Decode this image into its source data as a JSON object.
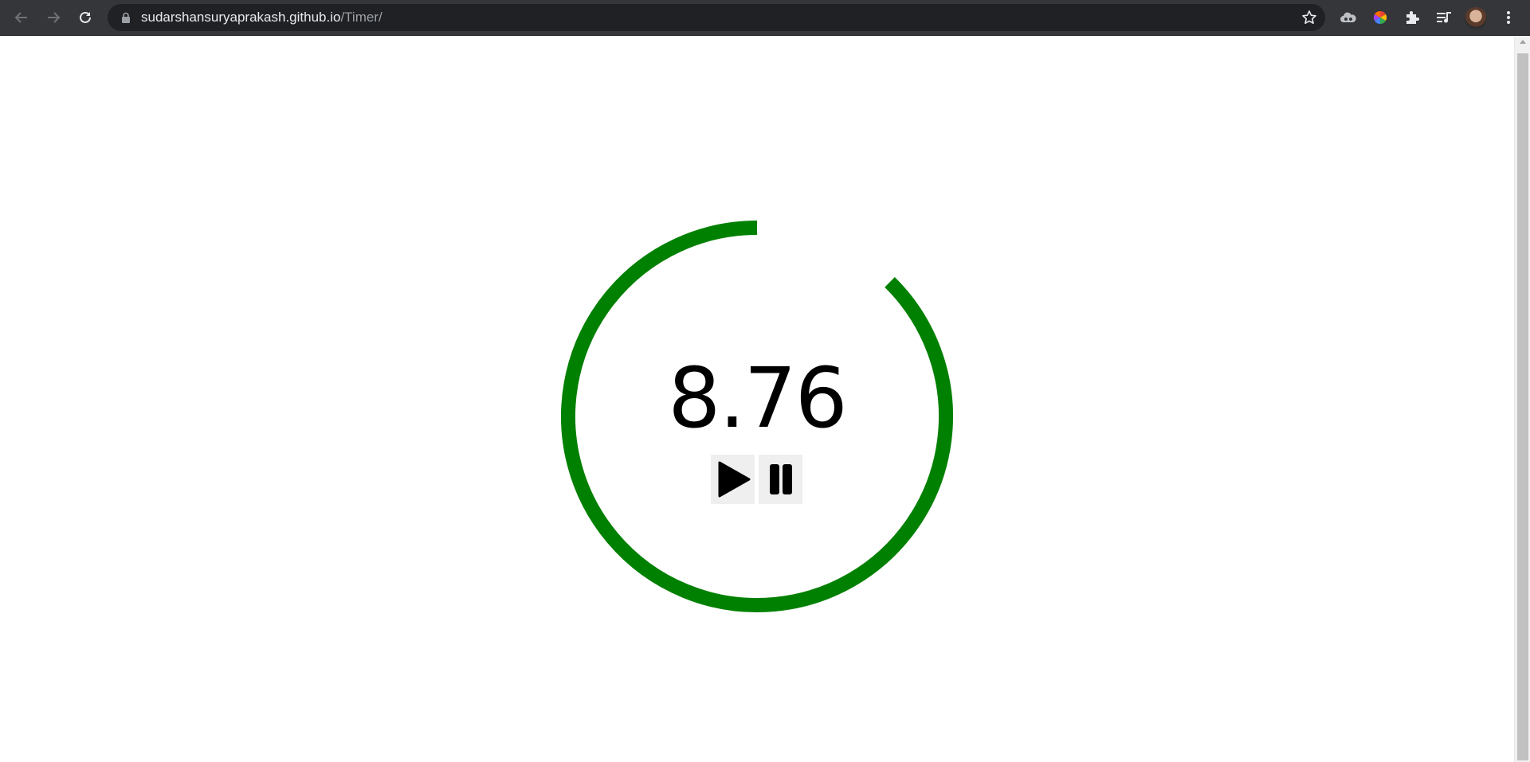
{
  "browser": {
    "url_host": "sudarshansuryaprakash.github.io",
    "url_path": "/Timer/"
  },
  "timer": {
    "value": "8.76",
    "progress_fraction": 0.876,
    "ring_color": "#008000"
  },
  "icons": {
    "back": "back-arrow-icon",
    "forward": "forward-arrow-icon",
    "reload": "reload-icon",
    "lock": "lock-icon",
    "star": "bookmark-star-icon",
    "extension1": "cloud-extension-icon",
    "extension2": "color-wheel-extension-icon",
    "extensions": "puzzle-icon",
    "media": "media-queue-icon",
    "profile": "avatar",
    "menu": "kebab-menu-icon",
    "play": "play-icon",
    "pause": "pause-icon"
  }
}
